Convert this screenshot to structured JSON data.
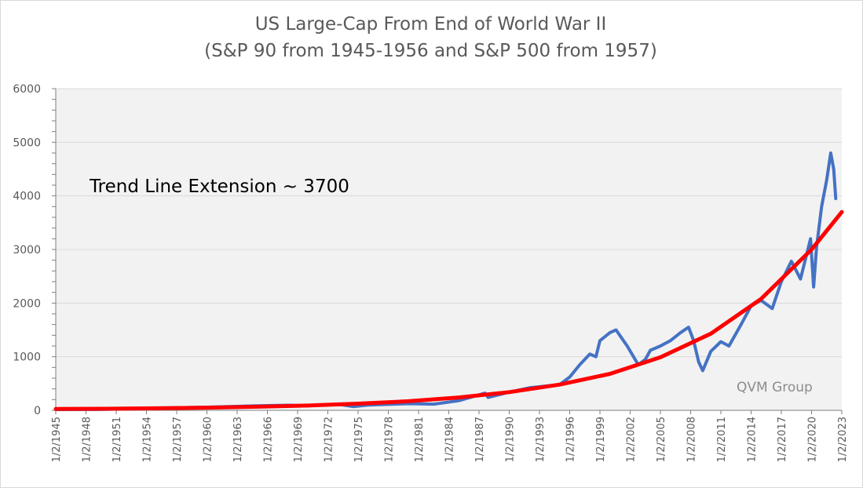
{
  "chart_data": {
    "type": "line",
    "title": "US Large-Cap From End of World War II",
    "subtitle": "(S&P 90 from 1945-1956 and S&P 500 from 1957)",
    "xlabel": "",
    "ylabel": "",
    "ylim": [
      0,
      6000
    ],
    "y_ticks": [
      "0",
      "1000",
      "2000",
      "3000",
      "4000",
      "5000",
      "6000"
    ],
    "xlim": [
      1945.0,
      2023.0
    ],
    "x_tick_labels": [
      "1/2/1945",
      "1/2/1948",
      "1/2/1951",
      "1/2/1954",
      "1/2/1957",
      "1/2/1960",
      "1/2/1963",
      "1/2/1966",
      "1/2/1969",
      "1/2/1972",
      "1/2/1975",
      "1/2/1978",
      "1/2/1981",
      "1/2/1984",
      "1/2/1987",
      "1/2/1990",
      "1/2/1993",
      "1/2/1996",
      "1/2/1999",
      "1/2/2002",
      "1/2/2005",
      "1/2/2008",
      "1/2/2011",
      "1/2/2014",
      "1/2/2017",
      "1/2/2020",
      "1/2/2023"
    ],
    "grid": true,
    "background": "#f2f2f2",
    "series": [
      {
        "color": "#4472c4",
        "x": [
          1945,
          1950,
          1955,
          1960,
          1965,
          1968,
          1970,
          1973,
          1974.5,
          1976,
          1980,
          1982.5,
          1985,
          1987.6,
          1987.9,
          1990,
          1992,
          1995,
          1996,
          1997,
          1998,
          1998.6,
          1999,
          2000,
          2000.6,
          2001.7,
          2002.8,
          2003.5,
          2004,
          2005,
          2006,
          2007,
          2007.8,
          2008.3,
          2008.8,
          2009.2,
          2010,
          2011,
          2011.8,
          2013,
          2014,
          2015,
          2016.1,
          2017,
          2018,
          2018.9,
          2019.5,
          2019.9,
          2020.2,
          2020.5,
          2021,
          2021.5,
          2021.9,
          2022.2,
          2022.4
        ],
        "y": [
          15,
          18,
          40,
          58,
          85,
          95,
          85,
          115,
          70,
          100,
          125,
          115,
          180,
          320,
          240,
          340,
          420,
          480,
          620,
          850,
          1050,
          1000,
          1300,
          1450,
          1500,
          1200,
          850,
          950,
          1120,
          1200,
          1300,
          1450,
          1550,
          1300,
          900,
          740,
          1100,
          1280,
          1200,
          1600,
          1950,
          2050,
          1900,
          2400,
          2780,
          2450,
          2900,
          3200,
          2300,
          3050,
          3800,
          4300,
          4800,
          4500,
          3950
        ]
      },
      {
        "color": "#ff0000",
        "x": [
          1945,
          1950,
          1955,
          1960,
          1965,
          1970,
          1975,
          1980,
          1985,
          1990,
          1995,
          2000,
          2005,
          2010,
          2015,
          2020,
          2023
        ],
        "y": [
          27,
          30,
          38,
          50,
          68,
          90,
          124,
          170,
          240,
          340,
          480,
          680,
          990,
          1430,
          2080,
          3000,
          3700
        ]
      }
    ],
    "annotations": {
      "trend_label": "Trend Line Extension ~ 3700",
      "watermark": "QVM Group"
    }
  }
}
